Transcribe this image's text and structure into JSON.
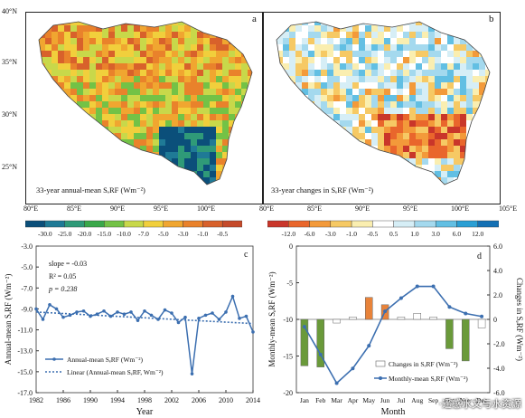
{
  "maps": {
    "a": {
      "letter": "a",
      "caption": "33-year annual-mean SₑRF (Wm⁻²)",
      "palette": [
        "#0b4f7a",
        "#1f7a96",
        "#2f9a78",
        "#3aa84a",
        "#73c246",
        "#c8d84a",
        "#f1cf3c",
        "#f0a630",
        "#e9822b",
        "#d8612b"
      ]
    },
    "b": {
      "letter": "b",
      "caption": "33-year changes in SₑRF (Wm⁻²)",
      "palette": [
        "#c9362a",
        "#e9662c",
        "#f39a3a",
        "#f6c964",
        "#faeeb0",
        "#ffffff",
        "#d6eef6",
        "#a4d9ee",
        "#62bfe3",
        "#2a9fd4"
      ]
    },
    "lat_ticks": [
      "40°N",
      "35°N",
      "30°N",
      "25°N"
    ],
    "lon_ticks_a": [
      "80°E",
      "85°E",
      "90°E",
      "95°E",
      "100°E"
    ],
    "lon_ticks_b": [
      "80°E",
      "85°E",
      "90°E",
      "95°E",
      "100°E",
      "105°E"
    ]
  },
  "colorbars": {
    "a": {
      "labels": [
        "-30.0",
        "-25.0",
        "-20.0",
        "-15.0",
        "-10.0",
        "-7.0",
        "-5.0",
        "-3.0",
        "-1.0",
        "-0.5"
      ],
      "colors": [
        "#0b4f7a",
        "#1f7a96",
        "#2f9a78",
        "#3aa84a",
        "#73c246",
        "#c8d84a",
        "#f1cf3c",
        "#f0a630",
        "#e9822b",
        "#d8612b",
        "#c54a2a"
      ]
    },
    "b": {
      "labels": [
        "-12.0",
        "-6.0",
        "-3.0",
        "-1.0",
        "-0.5",
        "0.5",
        "1.0",
        "3.0",
        "6.0",
        "12.0"
      ],
      "colors": [
        "#c9362a",
        "#e9662c",
        "#f39a3a",
        "#f6c964",
        "#faeeb0",
        "#ffffff",
        "#d6eef6",
        "#a4d9ee",
        "#62bfe3",
        "#2a9fd4",
        "#1470b4"
      ]
    }
  },
  "chart_data": [
    {
      "type": "line",
      "panel": "c",
      "xlabel": "Year",
      "ylabel": "Annual-mean SₑRF (Wm⁻²)",
      "xlim": [
        1982,
        2014
      ],
      "ylim": [
        -17,
        -3
      ],
      "x_ticks": [
        "1982",
        "1986",
        "1990",
        "1994",
        "1998",
        "2002",
        "2006",
        "2010",
        "2014"
      ],
      "y_ticks": [
        "-3.0",
        "-5.0",
        "-7.0",
        "-9.0",
        "-11.0",
        "-13.0",
        "-15.0",
        "-17.0"
      ],
      "annotations": [
        "slope = -0.03",
        "R² = 0.05",
        "p = 0.238"
      ],
      "series": [
        {
          "name": "Annual-mean SₑRF (Wm⁻²)",
          "style": "solid-marker",
          "color": "#3c6fb0",
          "x": [
            1982,
            1983,
            1984,
            1985,
            1986,
            1987,
            1988,
            1989,
            1990,
            1991,
            1992,
            1993,
            1994,
            1995,
            1996,
            1997,
            1998,
            1999,
            2000,
            2001,
            2002,
            2003,
            2004,
            2005,
            2006,
            2007,
            2008,
            2009,
            2010,
            2011,
            2012,
            2013,
            2014
          ],
          "y": [
            -9.0,
            -10.0,
            -8.6,
            -9.0,
            -9.8,
            -9.6,
            -9.3,
            -9.2,
            -9.7,
            -9.5,
            -9.2,
            -9.7,
            -9.3,
            -9.5,
            -9.3,
            -10.1,
            -9.2,
            -9.6,
            -10.0,
            -9.1,
            -9.4,
            -10.3,
            -9.8,
            -15.2,
            -9.9,
            -9.6,
            -9.4,
            -10.0,
            -9.3,
            -7.8,
            -9.9,
            -9.7,
            -11.2
          ]
        },
        {
          "name": "Linear (Annual-mean SₑRF, Wm⁻²)",
          "style": "dotted",
          "color": "#3c6fb0",
          "x": [
            1982,
            2014
          ],
          "y": [
            -9.3,
            -10.4
          ]
        }
      ]
    },
    {
      "type": "bar",
      "panel": "d",
      "xlabel": "Month",
      "ylabel": "Monthly-mean SₑRF (Wm⁻²)",
      "y2label": "Changes in SₑRF (Wm⁻²)",
      "categories": [
        "Jan",
        "Feb",
        "Mar",
        "Apr",
        "May",
        "Jun",
        "Jul",
        "Aug",
        "Sep",
        "Oct",
        "Nov",
        "Dec"
      ],
      "ylim": [
        -20,
        0
      ],
      "y_ticks": [
        "0",
        "-5",
        "-10",
        "-15",
        "-20"
      ],
      "y2lim": [
        -6,
        6
      ],
      "y2_ticks": [
        "6.0",
        "4.0",
        "2.0",
        "0",
        "-2.0",
        "-4.0",
        "-6.0"
      ],
      "series": [
        {
          "name": "Changes in SₑRF (Wm⁻²)",
          "axis": "right",
          "type": "bar",
          "values": [
            -3.8,
            -3.9,
            -0.3,
            0.2,
            1.8,
            1.2,
            0.2,
            0.5,
            0.2,
            -2.4,
            -3.4,
            -0.7
          ],
          "colors": [
            "#6a9a3a",
            "#6a9a3a",
            "#ffffff",
            "#ffffff",
            "#e8833a",
            "#e8833a",
            "#ffffff",
            "#ffffff",
            "#ffffff",
            "#6a9a3a",
            "#6a9a3a",
            "#ffffff"
          ]
        },
        {
          "name": "Monthly-mean SₑRF (Wm⁻²)",
          "axis": "left",
          "type": "line",
          "color": "#3c6fb0",
          "values": [
            -11.0,
            -14.8,
            -18.7,
            -16.7,
            -13.6,
            -8.9,
            -7.1,
            -5.5,
            -5.5,
            -8.3,
            -9.2,
            -9.6
          ]
        }
      ]
    }
  ],
  "watermark": "·遥感水文与水资源"
}
